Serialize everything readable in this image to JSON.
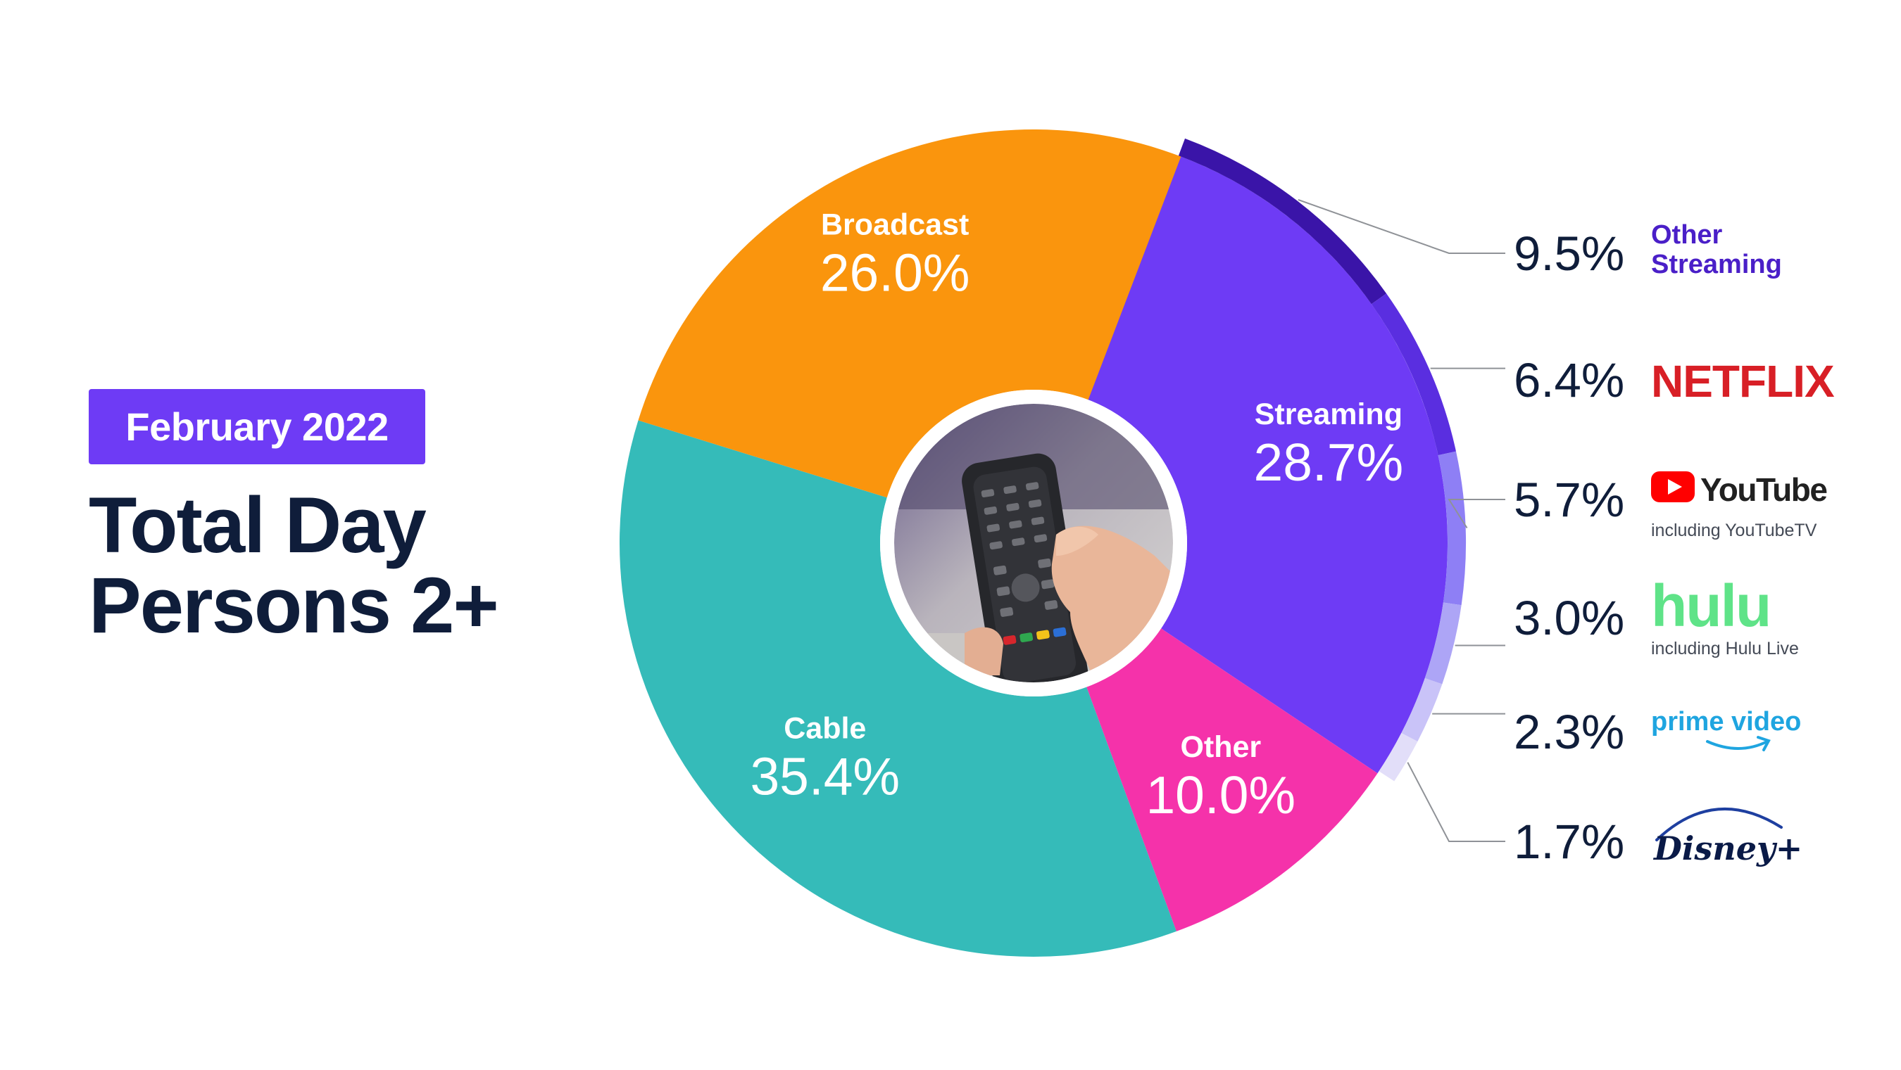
{
  "header": {
    "badge": "February 2022",
    "title_line1": "Total Day",
    "title_line2": "Persons 2+"
  },
  "chart_data": {
    "type": "pie",
    "title": "Total Day Persons 2+",
    "subtitle": "February 2022",
    "unit": "%",
    "slices": [
      {
        "label": "Streaming",
        "value": 28.7,
        "display": "28.7%",
        "color": "#6e3bf5"
      },
      {
        "label": "Other",
        "value": 10.0,
        "display": "10.0%",
        "color": "#f532aa"
      },
      {
        "label": "Cable",
        "value": 35.4,
        "display": "35.4%",
        "color": "#35bbb9"
      },
      {
        "label": "Broadcast",
        "value": 26.0,
        "display": "26.0%",
        "color": "#fa950d"
      }
    ],
    "streaming_breakdown": [
      {
        "label": "Other Streaming",
        "value": 9.5,
        "display": "9.5%",
        "color": "#3a14a8"
      },
      {
        "label": "NETFLIX",
        "value": 6.4,
        "display": "6.4%",
        "color": "#5a2ee0"
      },
      {
        "label": "YouTube",
        "note": "including YouTubeTV",
        "value": 5.7,
        "display": "5.7%",
        "color": "#8e7ff5"
      },
      {
        "label": "hulu",
        "note": "including Hulu Live",
        "value": 3.0,
        "display": "3.0%",
        "color": "#ada5f6"
      },
      {
        "label": "prime video",
        "value": 2.3,
        "display": "2.3%",
        "color": "#c9c3f8"
      },
      {
        "label": "Disney+",
        "value": 1.7,
        "display": "1.7%",
        "color": "#e2def9"
      }
    ]
  }
}
